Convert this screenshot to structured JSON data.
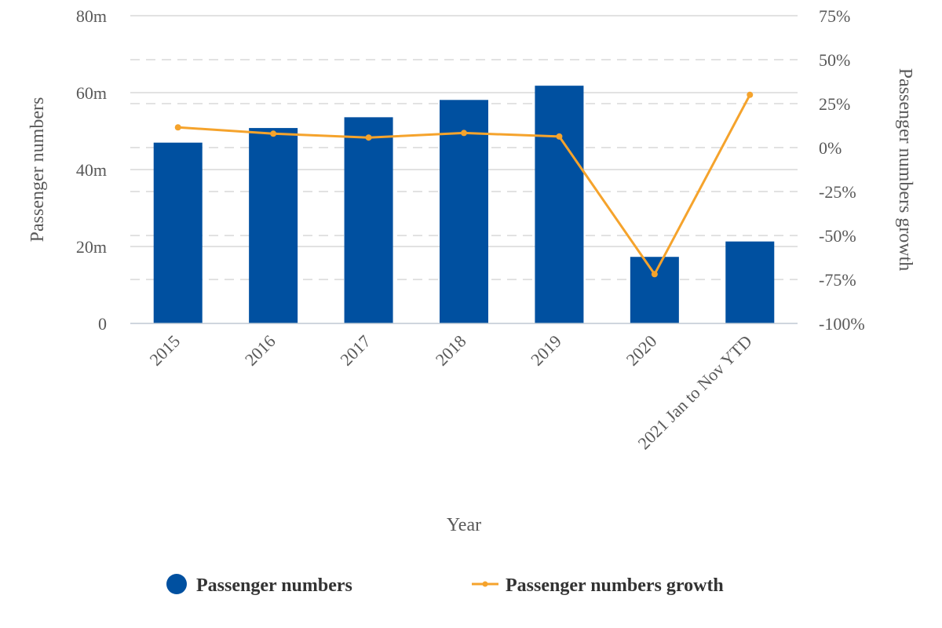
{
  "chart_data": {
    "type": "bar+line",
    "categories": [
      "2015",
      "2016",
      "2017",
      "2018",
      "2019",
      "2020",
      "2021 Jan to Nov YTD"
    ],
    "series": [
      {
        "name": "Passenger numbers",
        "type": "bar",
        "axis": "left",
        "values": [
          47,
          50.8,
          53.6,
          58.1,
          61.8,
          17.3,
          21.3
        ]
      },
      {
        "name": "Passenger numbers growth",
        "type": "line",
        "axis": "right",
        "values": [
          11.5,
          7.9,
          5.7,
          8.3,
          6.3,
          -72,
          30
        ]
      }
    ],
    "xlabel": "Year",
    "ylabel": "Passenger numbers",
    "y2label": "Passenger numbers growth",
    "ylim": [
      0,
      80
    ],
    "y2lim": [
      -100,
      75
    ],
    "yticks": [
      "0",
      "20m",
      "40m",
      "60m",
      "80m"
    ],
    "y2ticks": [
      "-100%",
      "-75%",
      "-50%",
      "-25%",
      "0%",
      "25%",
      "50%",
      "75%"
    ],
    "legend_position": "bottom",
    "grid": true,
    "colors": {
      "bars": "#0050a0",
      "line": "#f5a32c",
      "grid": "#d9d9d9",
      "text": "#595959"
    }
  }
}
